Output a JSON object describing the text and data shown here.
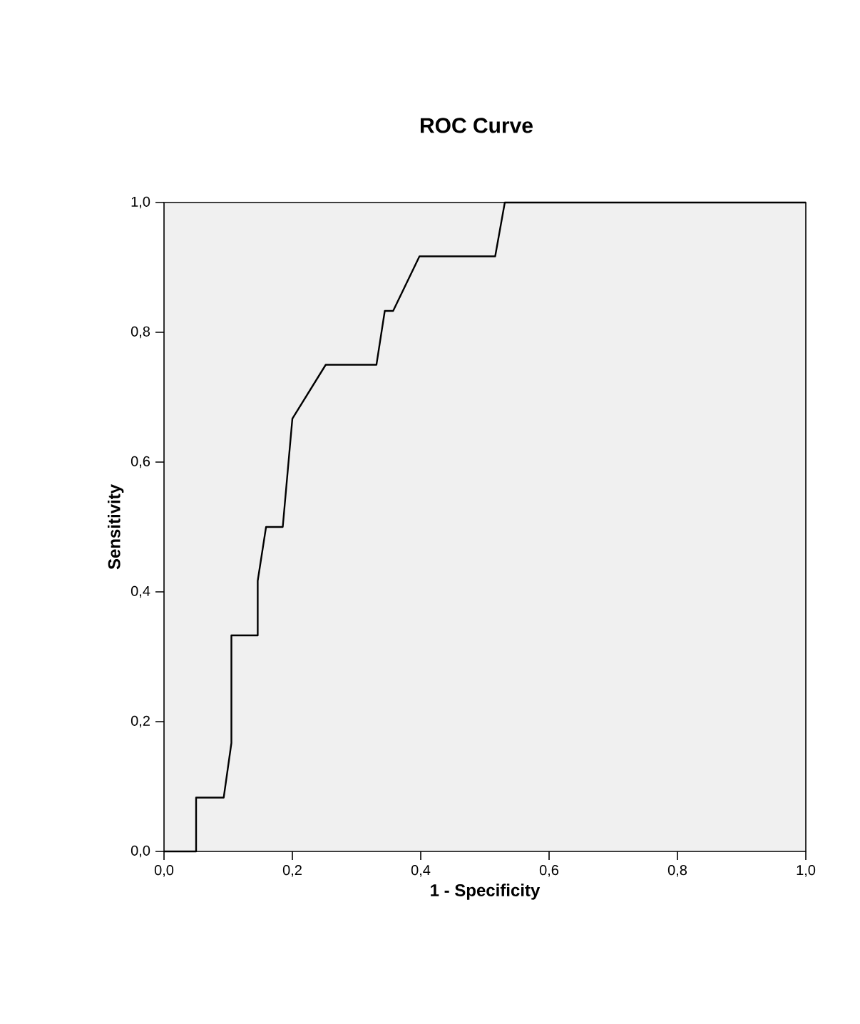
{
  "chart_data": {
    "type": "line",
    "title": "ROC Curve",
    "xlabel": "1 - Specificity",
    "ylabel": "Sensitivity",
    "x": [
      0,
      0.05,
      0.05,
      0.093,
      0.105,
      0.105,
      0.146,
      0.146,
      0.159,
      0.185,
      0.2,
      0.252,
      0.331,
      0.344,
      0.357,
      0.398,
      0.516,
      0.531,
      1.0
    ],
    "series": [
      {
        "color": "#000000",
        "values": [
          0,
          0,
          0.083,
          0.083,
          0.167,
          0.333,
          0.333,
          0.417,
          0.5,
          0.5,
          0.667,
          0.75,
          0.75,
          0.833,
          0.833,
          0.917,
          0.917,
          1.0,
          1.0
        ]
      }
    ],
    "xlim": [
      0,
      1
    ],
    "ylim": [
      0,
      1
    ],
    "xticks": [
      {
        "value": 0,
        "label": "0,0"
      },
      {
        "value": 0.2,
        "label": "0,2"
      },
      {
        "value": 0.4,
        "label": "0,4"
      },
      {
        "value": 0.6,
        "label": "0,6"
      },
      {
        "value": 0.8,
        "label": "0,8"
      },
      {
        "value": 1,
        "label": "1,0"
      }
    ],
    "yticks": [
      {
        "value": 0,
        "label": "0,0"
      },
      {
        "value": 0.2,
        "label": "0,2"
      },
      {
        "value": 0.4,
        "label": "0,4"
      },
      {
        "value": 0.6,
        "label": "0,6"
      },
      {
        "value": 0.8,
        "label": "0,8"
      },
      {
        "value": 1,
        "label": "1,0"
      }
    ],
    "grid": false,
    "marker": "none",
    "line_style": "solid"
  }
}
